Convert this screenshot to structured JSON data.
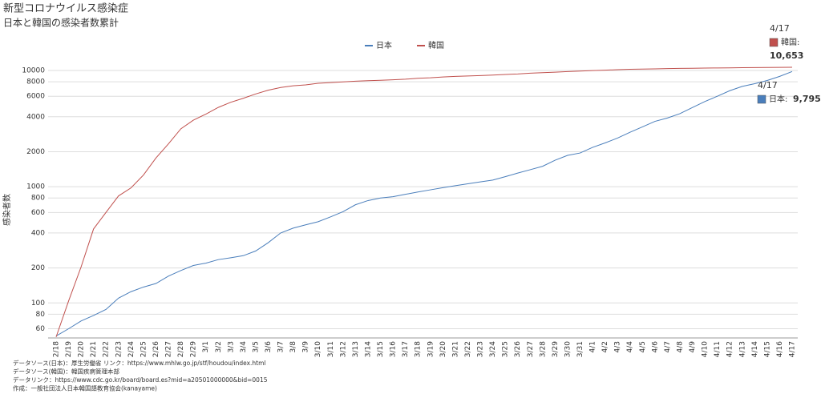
{
  "chart_data": {
    "type": "line",
    "title": "新型コロナウイルス感染症",
    "subtitle": "日本と韓国の感染者数累計",
    "y_label": "感染者数",
    "log_scale": true,
    "grid": true,
    "legend": "top",
    "categories": [
      "2/18",
      "2/19",
      "2/20",
      "2/21",
      "2/22",
      "2/23",
      "2/24",
      "2/25",
      "2/26",
      "2/27",
      "2/28",
      "2/29",
      "3/1",
      "3/2",
      "3/3",
      "3/4",
      "3/5",
      "3/6",
      "3/7",
      "3/8",
      "3/9",
      "3/10",
      "3/11",
      "3/12",
      "3/13",
      "3/14",
      "3/15",
      "3/16",
      "3/17",
      "3/18",
      "3/19",
      "3/20",
      "3/21",
      "3/22",
      "3/23",
      "3/24",
      "3/25",
      "3/26",
      "3/27",
      "3/28",
      "3/29",
      "3/30",
      "3/31",
      "4/1",
      "4/2",
      "4/3",
      "4/4",
      "4/5",
      "4/6",
      "4/7",
      "4/8",
      "4/9",
      "4/10",
      "4/11",
      "4/12",
      "4/13",
      "4/14",
      "4/15",
      "4/16",
      "4/17"
    ],
    "series": [
      {
        "name": "日本",
        "color": "#4a7ebb",
        "end_label": "日本:",
        "end_value_label": "9,795",
        "values": [
          52,
          60,
          70,
          78,
          88,
          110,
          125,
          137,
          147,
          170,
          190,
          210,
          220,
          236,
          245,
          255,
          280,
          330,
          400,
          440,
          470,
          500,
          550,
          610,
          700,
          760,
          800,
          820,
          860,
          900,
          940,
          980,
          1020,
          1060,
          1100,
          1140,
          1220,
          1310,
          1400,
          1500,
          1690,
          1860,
          1950,
          2180,
          2380,
          2620,
          2940,
          3270,
          3650,
          3900,
          4250,
          4800,
          5400,
          6000,
          6700,
          7300,
          7700,
          8200,
          8900,
          9795
        ]
      },
      {
        "name": "韓国",
        "color": "#c0504d",
        "end_label": "韓国:",
        "end_value_label": "10,653",
        "values": [
          51,
          104,
          204,
          433,
          602,
          833,
          977,
          1261,
          1766,
          2337,
          3150,
          3736,
          4212,
          4812,
          5328,
          5766,
          6284,
          6767,
          7134,
          7382,
          7513,
          7755,
          7869,
          7979,
          8086,
          8162,
          8236,
          8320,
          8413,
          8565,
          8652,
          8799,
          8897,
          8961,
          9037,
          9137,
          9241,
          9332,
          9478,
          9583,
          9661,
          9786,
          9887,
          9976,
          10062,
          10156,
          10237,
          10284,
          10331,
          10384,
          10423,
          10450,
          10480,
          10512,
          10537,
          10564,
          10591,
          10613,
          10635,
          10653
        ]
      }
    ],
    "ylim": [
      50,
      11000
    ],
    "yticks": [
      60,
      80,
      100,
      200,
      400,
      600,
      800,
      1000,
      2000,
      4000,
      6000,
      8000,
      10000
    ],
    "notes": [
      "データソース(日本)：厚生労働省 リンク：https://www.mhlw.go.jp/stf/houdou/index.html",
      "データソース(韓国)：韓国疾病管理本部",
      "データリンク：https://www.cdc.go.kr/board/board.es?mid=a20501000000&bid=0015",
      "作成：一般社団法人日本韓国語教育協会(kanayame)"
    ]
  }
}
